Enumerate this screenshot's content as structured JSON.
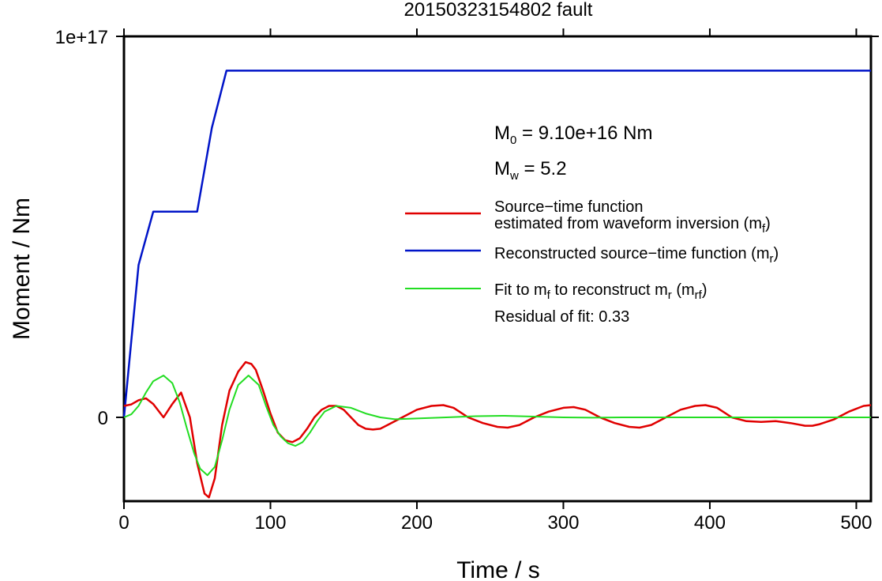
{
  "chart_data": {
    "type": "line",
    "title": "20150323154802 fault",
    "xlabel": "Time / s",
    "ylabel": "Moment / Nm",
    "xlim": [
      0,
      510
    ],
    "ylim": [
      -2.2e+16,
      1e+17
    ],
    "x_ticks": [
      {
        "value": 0,
        "label": "0"
      },
      {
        "value": 100,
        "label": "100"
      },
      {
        "value": 200,
        "label": "200"
      },
      {
        "value": 300,
        "label": "300"
      },
      {
        "value": 400,
        "label": "400"
      },
      {
        "value": 500,
        "label": "500"
      }
    ],
    "y_ticks": [
      {
        "value": 0,
        "label": "0"
      },
      {
        "value": 1e+17,
        "label": "1e+17"
      }
    ],
    "grid": false,
    "legend_position": "right",
    "annotations": {
      "m0": {
        "main": "M",
        "sub": "0",
        "rest": " = 9.10e+16 Nm"
      },
      "mw": {
        "main": "M",
        "sub": "w",
        "rest": " = 5.2"
      },
      "residual": "Residual of fit: 0.33"
    },
    "legend": [
      {
        "color": "#e00000",
        "line1": "Source−time function",
        "line2": "estimated from waveform inversion (m",
        "sub": "f",
        "close": ")"
      },
      {
        "color": "#0014c8",
        "line1": "Reconstructed source−time function (m",
        "sub": "r",
        "close": ")"
      },
      {
        "color": "#22dd22",
        "t1": "Fit to m",
        "s1": "f",
        "t2": " to reconstruct m",
        "s2": "r",
        "t3": " (m",
        "s3": "rf",
        "t4": ")"
      }
    ],
    "series": [
      {
        "color": "#0014c8",
        "x": [
          0,
          10,
          20,
          50,
          60,
          70,
          510
        ],
        "y": [
          0,
          4e+16,
          5.4e+16,
          5.4e+16,
          7.6e+16,
          9.1e+16,
          9.1e+16
        ]
      },
      {
        "color": "#e00000",
        "x": [
          0,
          5,
          10,
          15,
          20,
          27,
          33,
          39,
          45,
          50,
          55,
          58,
          62,
          67,
          72,
          78,
          83,
          87,
          90,
          95,
          100,
          105,
          110,
          115,
          120,
          125,
          130,
          135,
          140,
          145,
          150,
          155,
          160,
          165,
          170,
          175,
          180,
          190,
          200,
          210,
          218,
          225,
          235,
          245,
          255,
          262,
          270,
          280,
          290,
          300,
          307,
          315,
          325,
          335,
          345,
          352,
          360,
          370,
          380,
          390,
          397,
          405,
          415,
          425,
          435,
          445,
          455,
          465,
          470,
          475,
          485,
          495,
          505,
          510
        ],
        "y": [
          3000000000000000.0,
          3400000000000000.0,
          4500000000000000.0,
          5000000000000000.0,
          3500000000000000.0,
          0,
          3500000000000000.0,
          6500000000000000.0,
          0,
          -1.2e+16,
          -2e+16,
          -2.1e+16,
          -1.6e+16,
          -2000000000000000.0,
          7000000000000000.0,
          1.2e+16,
          1.45e+16,
          1.4e+16,
          1.25e+16,
          7000000000000000.0,
          1000000000000000.0,
          -4000000000000000.0,
          -6000000000000000.0,
          -6500000000000000.0,
          -5500000000000000.0,
          -3000000000000000.0,
          0,
          2000000000000000.0,
          3000000000000000.0,
          3000000000000000.0,
          2000000000000000.0,
          0,
          -2000000000000000.0,
          -3000000000000000.0,
          -3200000000000000.0,
          -3000000000000000.0,
          -2000000000000000.0,
          0,
          2000000000000000.0,
          3000000000000000.0,
          3200000000000000.0,
          2500000000000000.0,
          0,
          -1500000000000000.0,
          -2500000000000000.0,
          -2700000000000000.0,
          -2000000000000000.0,
          0,
          1500000000000000.0,
          2500000000000000.0,
          2700000000000000.0,
          2000000000000000.0,
          0,
          -1500000000000000.0,
          -2500000000000000.0,
          -2700000000000000.0,
          -2000000000000000.0,
          0,
          2000000000000000.0,
          3000000000000000.0,
          3200000000000000.0,
          2500000000000000.0,
          0,
          -1000000000000000.0,
          -1200000000000000.0,
          -1000000000000000.0,
          -1500000000000000.0,
          -2200000000000000.0,
          -2200000000000000.0,
          -1800000000000000.0,
          -500000000000000.0,
          1500000000000000.0,
          3000000000000000.0,
          3200000000000000.0
        ]
      },
      {
        "color": "#22dd22",
        "x": [
          0,
          5,
          10,
          15,
          20,
          27,
          33,
          38,
          43,
          48,
          52,
          57,
          62,
          67,
          72,
          78,
          85,
          92,
          97,
          102,
          107,
          112,
          117,
          122,
          127,
          132,
          137,
          145,
          155,
          165,
          175,
          185,
          200,
          220,
          240,
          260,
          280,
          300,
          320,
          340,
          360,
          380,
          400,
          440,
          480,
          510
        ],
        "y": [
          0,
          800000000000000.0,
          3000000000000000.0,
          6500000000000000.0,
          9500000000000000.0,
          1.1e+16,
          9000000000000000.0,
          4000000000000000.0,
          -3000000000000000.0,
          -9500000000000000.0,
          -1.35e+16,
          -1.52e+16,
          -1.3e+16,
          -6000000000000000.0,
          2000000000000000.0,
          8500000000000000.0,
          1.1e+16,
          8500000000000000.0,
          3000000000000000.0,
          -2000000000000000.0,
          -5000000000000000.0,
          -6800000000000000.0,
          -7500000000000000.0,
          -6500000000000000.0,
          -4000000000000000.0,
          -1000000000000000.0,
          1500000000000000.0,
          3000000000000000.0,
          2500000000000000.0,
          1000000000000000.0,
          0,
          -500000000000000.0,
          -300000000000000.0,
          0,
          300000000000000.0,
          400000000000000.0,
          200000000000000.0,
          0,
          -100000000000000.0,
          0,
          0,
          0,
          0,
          0,
          0,
          0
        ]
      }
    ]
  }
}
